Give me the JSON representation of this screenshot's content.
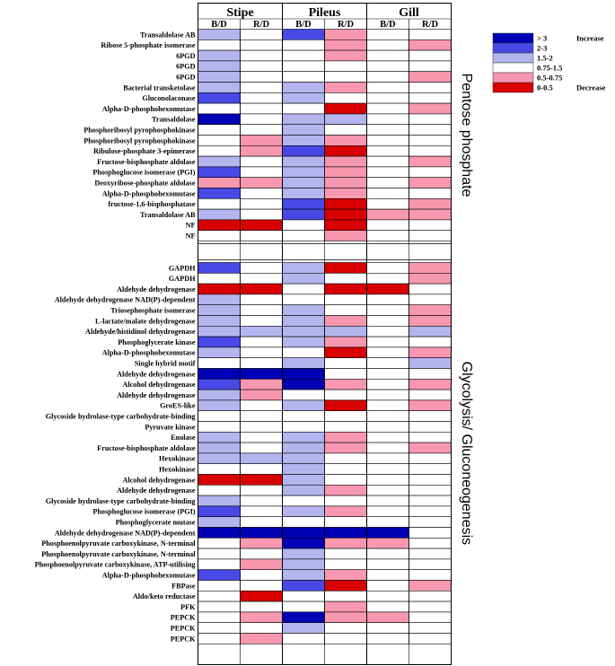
{
  "chart_data": {
    "type": "heatmap",
    "groups": [
      "Stipe",
      "Pileus",
      "Gill"
    ],
    "subcolumns": [
      "B/D",
      "R/D"
    ],
    "legend": [
      {
        "label": "> 3",
        "color": "#0000b4"
      },
      {
        "label": "2-3",
        "color": "#4848e6"
      },
      {
        "label": "1.5-2",
        "color": "#b4b4ee"
      },
      {
        "label": "0.75-1.5",
        "color": "#ffffff"
      },
      {
        "label": "0.5-0.75",
        "color": "#f898b0"
      },
      {
        "label": "0-0.5",
        "color": "#d80000"
      }
    ],
    "legend_notes": {
      "increase": "Increase",
      "decrease": "Decrease"
    },
    "sections": [
      {
        "name": "Pentose phosphate",
        "rows": [
          {
            "label": "Transaldolase AB",
            "values": [
              "1.5-2",
              "0.75-1.5",
              "2-3",
              "0.5-0.75",
              "0.75-1.5",
              "0.75-1.5"
            ]
          },
          {
            "label": "Ribose 5-phosphate isomerase",
            "values": [
              "0.75-1.5",
              "0.75-1.5",
              "0.75-1.5",
              "0.5-0.75",
              "0.75-1.5",
              "0.5-0.75"
            ]
          },
          {
            "label": "6PGD",
            "values": [
              "1.5-2",
              "0.75-1.5",
              "0.75-1.5",
              "0.5-0.75",
              "0.75-1.5",
              "0.75-1.5"
            ]
          },
          {
            "label": "6PGD",
            "values": [
              "1.5-2",
              "0.75-1.5",
              "0.75-1.5",
              "0.75-1.5",
              "0.75-1.5",
              "0.75-1.5"
            ]
          },
          {
            "label": "6PGD",
            "values": [
              "1.5-2",
              "0.75-1.5",
              "0.75-1.5",
              "0.75-1.5",
              "0.75-1.5",
              "0.5-0.75"
            ]
          },
          {
            "label": "Bacterial transketolase",
            "values": [
              "1.5-2",
              "0.75-1.5",
              "1.5-2",
              "0.5-0.75",
              "0.75-1.5",
              "0.75-1.5"
            ]
          },
          {
            "label": "Gluconolaconase",
            "values": [
              "2-3",
              "0.75-1.5",
              "1.5-2",
              "0.75-1.5",
              "0.75-1.5",
              "0.75-1.5"
            ]
          },
          {
            "label": "Alpha-D-phosphohexomutase",
            "values": [
              "0.75-1.5",
              "0.75-1.5",
              "0.75-1.5",
              "0-0.5",
              "0.75-1.5",
              "0.5-0.75"
            ]
          },
          {
            "label": "Transaldolase",
            "values": [
              "> 3",
              "0.75-1.5",
              "1.5-2",
              "1.5-2",
              "0.75-1.5",
              "0.75-1.5"
            ]
          },
          {
            "label": "Phosphoribosyl pyrophosphokinase",
            "values": [
              "0.75-1.5",
              "0.75-1.5",
              "1.5-2",
              "0.75-1.5",
              "0.75-1.5",
              "0.75-1.5"
            ]
          },
          {
            "label": "Phosphoribosyl pyrophosphokinase",
            "values": [
              "0.75-1.5",
              "0.5-0.75",
              "1.5-2",
              "0.5-0.75",
              "0.75-1.5",
              "0.75-1.5"
            ]
          },
          {
            "label": "Ribulose-phosphate 3-epimerase",
            "values": [
              "0.75-1.5",
              "0.5-0.75",
              "2-3",
              "0-0.5",
              "0.75-1.5",
              "0.75-1.5"
            ]
          },
          {
            "label": "Fructose-bisphosphate aldolase",
            "values": [
              "1.5-2",
              "0.75-1.5",
              "1.5-2",
              "0.5-0.75",
              "0.75-1.5",
              "0.5-0.75"
            ]
          },
          {
            "label": "Phosphoglucose isomerase (PGI)",
            "values": [
              "2-3",
              "0.75-1.5",
              "1.5-2",
              "0.5-0.75",
              "0.75-1.5",
              "0.75-1.5"
            ]
          },
          {
            "label": "Deoxyribose-phosphate aldolase",
            "values": [
              "0.5-0.75",
              "0.5-0.75",
              "1.5-2",
              "0.5-0.75",
              "0.75-1.5",
              "0.5-0.75"
            ]
          },
          {
            "label": "Alpha-D-phosphohexomutase",
            "values": [
              "2-3",
              "0.75-1.5",
              "1.5-2",
              "0.5-0.75",
              "0.75-1.5",
              "0.75-1.5"
            ]
          },
          {
            "label": "fructose-1,6-bisphosphatase",
            "values": [
              "0.75-1.5",
              "0.75-1.5",
              "2-3",
              "0-0.5",
              "0.75-1.5",
              "0.5-0.75"
            ]
          },
          {
            "label": "Transaldolase AB",
            "values": [
              "1.5-2",
              "0.75-1.5",
              "2-3",
              "0-0.5",
              "0.5-0.75",
              "0.5-0.75"
            ]
          },
          {
            "label": "NF",
            "values": [
              "0-0.5",
              "0-0.5",
              "0.75-1.5",
              "0-0.5",
              "0.75-1.5",
              "0.75-1.5"
            ]
          },
          {
            "label": "NF",
            "values": [
              "0.75-1.5",
              "0.75-1.5",
              "0.75-1.5",
              "0.5-0.75",
              "0.75-1.5",
              "0.75-1.5"
            ]
          }
        ]
      },
      {
        "name": "Glycolysis/ Gluconeogenesis",
        "rows": [
          {
            "label": "GAPDH",
            "values": [
              "2-3",
              "0.75-1.5",
              "1.5-2",
              "0-0.5",
              "0.75-1.5",
              "0.5-0.75"
            ]
          },
          {
            "label": "GAPDH",
            "values": [
              "0.75-1.5",
              "0.75-1.5",
              "1.5-2",
              "0.75-1.5",
              "0.75-1.5",
              "0.5-0.75"
            ]
          },
          {
            "label": "Aldehyde dehydrogenase",
            "values": [
              "0-0.5",
              "0-0.5",
              "0.75-1.5",
              "0-0.5",
              "0-0.5",
              "0.75-1.5"
            ]
          },
          {
            "label": "Aldehyde dehydrogenase NAD(P)-dependent",
            "values": [
              "1.5-2",
              "0.75-1.5",
              "0.75-1.5",
              "0.75-1.5",
              "0.75-1.5",
              "0.75-1.5"
            ]
          },
          {
            "label": "Triosephosphate isomerase",
            "values": [
              "1.5-2",
              "0.75-1.5",
              "1.5-2",
              "0.75-1.5",
              "0.75-1.5",
              "0.5-0.75"
            ]
          },
          {
            "label": "L-lactate/malate dehydrogenase",
            "values": [
              "1.5-2",
              "0.75-1.5",
              "1.5-2",
              "0.5-0.75",
              "0.75-1.5",
              "0.5-0.75"
            ]
          },
          {
            "label": "Aldehyde/histidinol dehydrogenase",
            "values": [
              "1.5-2",
              "1.5-2",
              "1.5-2",
              "1.5-2",
              "0.75-1.5",
              "1.5-2"
            ]
          },
          {
            "label": "Phosphoglycerate kinase",
            "values": [
              "2-3",
              "0.75-1.5",
              "1.5-2",
              "0.5-0.75",
              "0.75-1.5",
              "0.75-1.5"
            ]
          },
          {
            "label": "Alpha-D-phosphohexomutase",
            "values": [
              "1.5-2",
              "0.75-1.5",
              "0.75-1.5",
              "0-0.5",
              "0.75-1.5",
              "0.5-0.75"
            ]
          },
          {
            "label": "Single hybrid motif",
            "values": [
              "0.75-1.5",
              "0.75-1.5",
              "1.5-2",
              "0.75-1.5",
              "0.75-1.5",
              "1.5-2"
            ]
          },
          {
            "label": "Aldehyde dehydrogenase",
            "values": [
              "> 3",
              "> 3",
              "> 3",
              "0.75-1.5",
              "0.75-1.5",
              "0.75-1.5"
            ]
          },
          {
            "label": "Alcohol dehydrogenase",
            "values": [
              "2-3",
              "0.5-0.75",
              "> 3",
              "0.5-0.75",
              "0.75-1.5",
              "0.5-0.75"
            ]
          },
          {
            "label": "Aldehyde dehydrogenase",
            "values": [
              "1.5-2",
              "0.5-0.75",
              "0.75-1.5",
              "0.75-1.5",
              "0.75-1.5",
              "0.75-1.5"
            ]
          },
          {
            "label": "GroES-like",
            "values": [
              "1.5-2",
              "0.75-1.5",
              "1.5-2",
              "0-0.5",
              "0.75-1.5",
              "0.5-0.75"
            ]
          },
          {
            "label": "Glycoside hydrolase-type carbohydrate-binding",
            "values": [
              "0.75-1.5",
              "0.75-1.5",
              "0.75-1.5",
              "0.75-1.5",
              "0.75-1.5",
              "0.75-1.5"
            ]
          },
          {
            "label": "Pyruvate kinase",
            "values": [
              "0.75-1.5",
              "0.75-1.5",
              "0.75-1.5",
              "0.75-1.5",
              "0.75-1.5",
              "0.75-1.5"
            ]
          },
          {
            "label": "Enolase",
            "values": [
              "1.5-2",
              "0.75-1.5",
              "1.5-2",
              "0.5-0.75",
              "0.75-1.5",
              "0.75-1.5"
            ]
          },
          {
            "label": "Fructose-bisphosphate aldolase",
            "values": [
              "1.5-2",
              "0.75-1.5",
              "1.5-2",
              "0.5-0.75",
              "0.75-1.5",
              "0.5-0.75"
            ]
          },
          {
            "label": "Hexokinase",
            "values": [
              "1.5-2",
              "1.5-2",
              "1.5-2",
              "0.75-1.5",
              "0.75-1.5",
              "0.75-1.5"
            ]
          },
          {
            "label": "Hexokinase",
            "values": [
              "0.75-1.5",
              "0.75-1.5",
              "1.5-2",
              "0.75-1.5",
              "0.75-1.5",
              "0.75-1.5"
            ]
          },
          {
            "label": "Alcohol dehydrogenase",
            "values": [
              "0-0.5",
              "0-0.5",
              "1.5-2",
              "0.75-1.5",
              "0.75-1.5",
              "0.75-1.5"
            ]
          },
          {
            "label": "Aldehyde dehydrogenase",
            "values": [
              "0.75-1.5",
              "0.75-1.5",
              "1.5-2",
              "0.5-0.75",
              "0.75-1.5",
              "0.75-1.5"
            ]
          },
          {
            "label": "Glycoside hydrolase-type carbohydrate-binding",
            "values": [
              "1.5-2",
              "0.75-1.5",
              "0.75-1.5",
              "0.75-1.5",
              "0.75-1.5",
              "0.75-1.5"
            ]
          },
          {
            "label": "Phosphoglucose isomerase (PGI)",
            "values": [
              "2-3",
              "0.75-1.5",
              "1.5-2",
              "0.5-0.75",
              "0.75-1.5",
              "0.75-1.5"
            ]
          },
          {
            "label": "Phosphoglycerate mutase",
            "values": [
              "1.5-2",
              "0.75-1.5",
              "0.75-1.5",
              "0.75-1.5",
              "0.75-1.5",
              "0.75-1.5"
            ]
          },
          {
            "label": "Aldehyde dehydrogenase NAD(P)-dependent",
            "values": [
              "> 3",
              "> 3",
              "> 3",
              "> 3",
              "> 3",
              "0.75-1.5"
            ]
          },
          {
            "label": "Phosphoenolpyruvate carboxykinase, N-terminal",
            "values": [
              "0.75-1.5",
              "0.5-0.75",
              "> 3",
              "0.5-0.75",
              "0.5-0.75",
              "0.75-1.5"
            ]
          },
          {
            "label": "Phosphoenolpyruvate carboxykinase, N-terminal",
            "values": [
              "0.75-1.5",
              "0.75-1.5",
              "1.5-2",
              "0.75-1.5",
              "0.75-1.5",
              "0.75-1.5"
            ]
          },
          {
            "label": "Phosphoenolpyruvate carboxykinase, ATP-utilising",
            "values": [
              "0.75-1.5",
              "0.5-0.75",
              "1.5-2",
              "0.75-1.5",
              "0.75-1.5",
              "0.75-1.5"
            ]
          },
          {
            "label": "Alpha-D-phosphohexomutase",
            "values": [
              "2-3",
              "0.75-1.5",
              "1.5-2",
              "0.5-0.75",
              "0.75-1.5",
              "0.75-1.5"
            ]
          },
          {
            "label": "FBPase",
            "values": [
              "0.75-1.5",
              "0.75-1.5",
              "2-3",
              "0-0.5",
              "0.75-1.5",
              "0.5-0.75"
            ]
          },
          {
            "label": "Aldo/keto reductase",
            "values": [
              "0.75-1.5",
              "0-0.5",
              "0.75-1.5",
              "0.75-1.5",
              "0.75-1.5",
              "0.75-1.5"
            ]
          },
          {
            "label": "PFK",
            "values": [
              "0.75-1.5",
              "0.75-1.5",
              "0.75-1.5",
              "0.5-0.75",
              "0.75-1.5",
              "0.75-1.5"
            ]
          },
          {
            "label": "PEPCK",
            "values": [
              "0.75-1.5",
              "0.5-0.75",
              "> 3",
              "0.5-0.75",
              "0.5-0.75",
              "0.75-1.5"
            ]
          },
          {
            "label": "PEPCK",
            "values": [
              "0.75-1.5",
              "0.75-1.5",
              "1.5-2",
              "0.75-1.5",
              "0.75-1.5",
              "0.75-1.5"
            ]
          },
          {
            "label": "PEPCK",
            "values": [
              "0.75-1.5",
              "0.5-0.75",
              "0.75-1.5",
              "0.75-1.5",
              "0.75-1.5",
              "0.75-1.5"
            ]
          }
        ]
      }
    ]
  }
}
